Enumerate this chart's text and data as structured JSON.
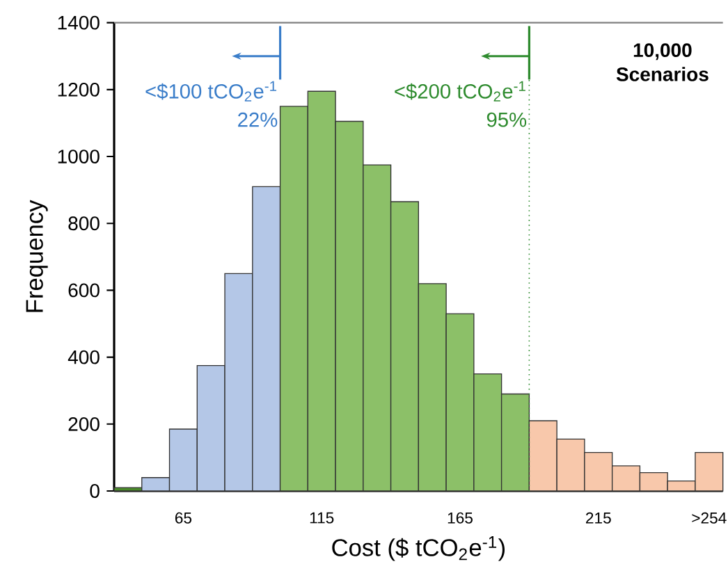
{
  "chart_data": {
    "type": "histogram",
    "xlabel": "Cost ($ tCO$_{2}$e$^{-1}$)",
    "ylabel": "Frequency",
    "bins": [
      40,
      50,
      60,
      70,
      80,
      90,
      100,
      110,
      120,
      130,
      140,
      150,
      160,
      170,
      180,
      190,
      200,
      210,
      220,
      230,
      240,
      250,
      260
    ],
    "values": [
      10,
      40,
      185,
      375,
      650,
      910,
      1150,
      1195,
      1105,
      975,
      865,
      620,
      530,
      350,
      290,
      210,
      155,
      115,
      75,
      55,
      30,
      115
    ],
    "colors": [
      "#4a8a2a",
      "#b4c7e7",
      "#b4c7e7",
      "#b4c7e7",
      "#b4c7e7",
      "#b4c7e7",
      "#8cc068",
      "#8cc068",
      "#8cc068",
      "#8cc068",
      "#8cc068",
      "#8cc068",
      "#8cc068",
      "#8cc068",
      "#8cc068",
      "#f8c8ab",
      "#f8c8ab",
      "#f8c8ab",
      "#f8c8ab",
      "#f8c8ab",
      "#f8c8ab",
      "#f8c8ab"
    ],
    "xlim": [
      40,
      260
    ],
    "ylim": [
      0,
      1400
    ],
    "xticks": [
      65,
      115,
      165,
      215,
      {
        "value": 255,
        "label": ">254"
      }
    ],
    "yticks": [
      0,
      200,
      400,
      600,
      800,
      1000,
      1200,
      1400
    ],
    "ref_lines": [
      {
        "axis": "x",
        "value": 100,
        "label": "<$100 tCO$_{2}$e$^{-1}$",
        "color": "#3a7dc9"
      },
      {
        "axis": "x",
        "value": 190,
        "label": "<$200 tCO$_{2}$e$^{-1}$",
        "color": "#2e8b2e",
        "line_style": "dotted"
      }
    ],
    "annotations": [
      {
        "text": "22%",
        "x": 100,
        "y": 1110
      },
      {
        "text": "95%",
        "x": 190,
        "y": 1110
      },
      "10,000 Scenarios"
    ]
  }
}
